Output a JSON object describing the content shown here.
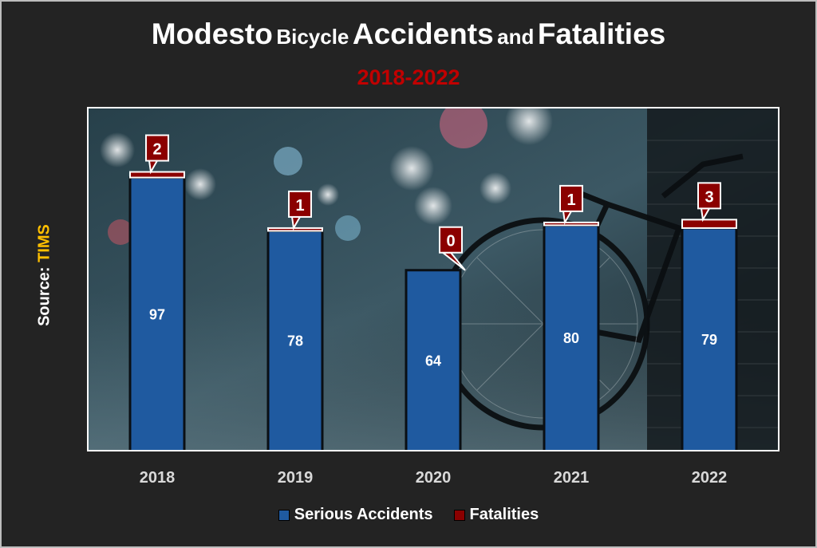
{
  "title": {
    "w1": "Modesto",
    "w2": "Bicycle",
    "w3": "Accidents",
    "w4": "and",
    "w5": "Fatalities"
  },
  "subtitle": "2018-2022",
  "source": {
    "label": "Source: ",
    "value": "TIMS"
  },
  "colors": {
    "serious": "#1f5aa0",
    "fatal": "#8b0000",
    "subtitle": "#c00000",
    "source": "#ffc000"
  },
  "chart_data": {
    "type": "bar",
    "stacked": true,
    "categories": [
      "2018",
      "2019",
      "2020",
      "2021",
      "2022"
    ],
    "series": [
      {
        "name": "Serious Accidents",
        "values": [
          97,
          78,
          64,
          80,
          79
        ]
      },
      {
        "name": "Fatalities",
        "values": [
          2,
          1,
          0,
          1,
          3
        ]
      }
    ],
    "ylim": [
      0,
      100
    ],
    "grid": false,
    "legend_position": "bottom"
  }
}
